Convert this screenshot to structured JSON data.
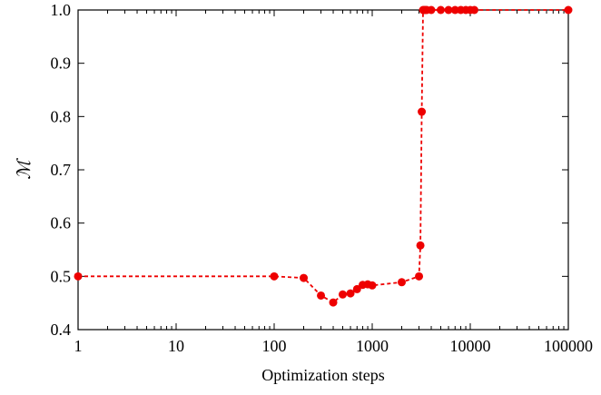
{
  "chart_data": {
    "type": "scatter",
    "title": "",
    "xlabel": "Optimization steps",
    "ylabel": "ℳ",
    "xscale": "log",
    "xlim": [
      1,
      100000
    ],
    "ylim": [
      0.4,
      1.0
    ],
    "grid": false,
    "legend": "none",
    "color": "#ee0000",
    "line_style": "dashed",
    "xticks": [
      1,
      10,
      100,
      1000,
      10000,
      100000
    ],
    "xtick_labels": [
      "1",
      "10",
      "100",
      "1000",
      "10000",
      "100000"
    ],
    "yticks": [
      0.4,
      0.5,
      0.6,
      0.7,
      0.8,
      0.9,
      1.0
    ],
    "ytick_labels": [
      "0.4",
      "0.5",
      "0.6",
      "0.7",
      "0.8",
      "0.9",
      "1.0"
    ],
    "series": [
      {
        "x": [
          1,
          100,
          200,
          300,
          400,
          500,
          600,
          700,
          800,
          900,
          1000,
          2000,
          3000,
          3100,
          3200,
          3300,
          3400,
          3500,
          3600,
          4000,
          5000,
          6000,
          7000,
          8000,
          9000,
          10000,
          11000,
          100000
        ],
        "y": [
          0.5,
          0.5,
          0.497,
          0.464,
          0.451,
          0.466,
          0.468,
          0.476,
          0.484,
          0.485,
          0.483,
          0.489,
          0.5,
          0.558,
          0.809,
          1.0,
          1.0,
          1.0,
          1.0,
          1.0,
          1.0,
          1.0,
          1.0,
          1.0,
          1.0,
          1.0,
          1.0,
          1.0
        ]
      }
    ]
  }
}
